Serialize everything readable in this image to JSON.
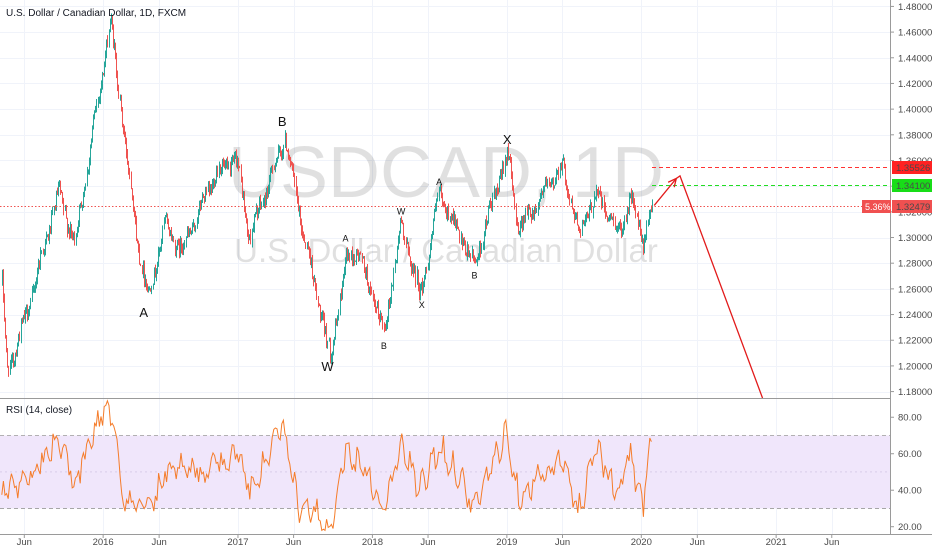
{
  "symbol_title": "U.S. Dollar / Canadian Dollar, 1D, FXCM",
  "watermark": {
    "ticker": "USDCAD, 1D",
    "name": "U.S. Dollar / Canadian Dollar"
  },
  "colors": {
    "up": "#26a69a",
    "down": "#ef5350",
    "rsi_line": "#f57c2a",
    "rsi_band": "#f0e6fb",
    "resistance": "#ff3333",
    "target": "#22dd22",
    "projection": "#e21b1b"
  },
  "chart_data": [
    {
      "type": "candlestick",
      "title": "U.S. Dollar / Canadian Dollar, 1D, FXCM",
      "ylim": [
        1.175,
        1.485
      ],
      "y_ticks": [
        "1.18000",
        "1.20000",
        "1.22000",
        "1.24000",
        "1.26000",
        "1.28000",
        "1.30000",
        "1.32000",
        "1.34000",
        "1.36000",
        "1.38000",
        "1.40000",
        "1.42000",
        "1.44000",
        "1.46000",
        "1.48000"
      ],
      "x_ticks": [
        "Jun",
        "2016",
        "Jun",
        "2017",
        "Jun",
        "2018",
        "Jun",
        "2019",
        "Jun",
        "2020",
        "Jun",
        "2021",
        "Jun"
      ],
      "grid": true,
      "key_points": [
        {
          "date": "2015-04-01",
          "price": 1.265
        },
        {
          "date": "2015-04-15",
          "price": 1.195
        },
        {
          "date": "2015-06-01",
          "price": 1.235
        },
        {
          "date": "2015-09-01",
          "price": 1.335
        },
        {
          "date": "2015-10-15",
          "price": 1.295
        },
        {
          "date": "2016-01-20",
          "price": 1.468
        },
        {
          "date": "2016-04-01",
          "price": 1.3
        },
        {
          "date": "2016-05-02",
          "price": 1.253
        },
        {
          "date": "2016-06-15",
          "price": 1.31
        },
        {
          "date": "2016-08-01",
          "price": 1.29
        },
        {
          "date": "2016-11-01",
          "price": 1.35
        },
        {
          "date": "2016-12-28",
          "price": 1.36
        },
        {
          "date": "2017-01-31",
          "price": 1.3
        },
        {
          "date": "2017-05-08",
          "price": 1.378
        },
        {
          "date": "2017-06-15",
          "price": 1.32
        },
        {
          "date": "2017-09-08",
          "price": 1.206
        },
        {
          "date": "2017-10-20",
          "price": 1.282
        },
        {
          "date": "2017-11-20",
          "price": 1.29
        },
        {
          "date": "2018-01-31",
          "price": 1.226
        },
        {
          "date": "2018-03-20",
          "price": 1.311
        },
        {
          "date": "2018-05-10",
          "price": 1.254
        },
        {
          "date": "2018-07-01",
          "price": 1.334
        },
        {
          "date": "2018-10-02",
          "price": 1.278
        },
        {
          "date": "2019-01-02",
          "price": 1.366
        },
        {
          "date": "2019-02-01",
          "price": 1.307
        },
        {
          "date": "2019-05-31",
          "price": 1.356
        },
        {
          "date": "2019-07-15",
          "price": 1.303
        },
        {
          "date": "2019-09-01",
          "price": 1.335
        },
        {
          "date": "2019-10-29",
          "price": 1.303
        },
        {
          "date": "2019-12-01",
          "price": 1.331
        },
        {
          "date": "2020-01-07",
          "price": 1.295
        },
        {
          "date": "2020-01-31",
          "price": 1.3248
        }
      ],
      "last_price": {
        "value": "1.32479",
        "change": "5.36%"
      },
      "levels": [
        {
          "label": "1.35526",
          "value": 1.35526,
          "style": "dashed",
          "color": "#ff3333"
        },
        {
          "label": "1.34100",
          "value": 1.341,
          "style": "dashed",
          "color": "#22dd22"
        },
        {
          "label": "1.32479",
          "value": 1.32479,
          "style": "dotted",
          "color": "#ef5350"
        }
      ],
      "wave_labels": [
        {
          "text": "A",
          "date": "2016-04-20",
          "price": 1.238,
          "size": "large"
        },
        {
          "text": "B",
          "date": "2017-05-01",
          "price": 1.387,
          "size": "large"
        },
        {
          "text": "W",
          "date": "2017-09-01",
          "price": 1.196,
          "size": "large"
        },
        {
          "text": "A",
          "date": "2017-10-20",
          "price": 1.297,
          "size": "small"
        },
        {
          "text": "B",
          "date": "2018-02-01",
          "price": 1.213,
          "size": "small"
        },
        {
          "text": "W",
          "date": "2018-03-20",
          "price": 1.318,
          "size": "small"
        },
        {
          "text": "X",
          "date": "2018-05-15",
          "price": 1.245,
          "size": "small"
        },
        {
          "text": "A",
          "date": "2018-07-01",
          "price": 1.341,
          "size": "small"
        },
        {
          "text": "B",
          "date": "2018-10-05",
          "price": 1.268,
          "size": "small"
        },
        {
          "text": "X",
          "date": "2019-01-02",
          "price": 1.373,
          "size": "large"
        }
      ],
      "projection": [
        {
          "date": "2020-02-05",
          "price": 1.325
        },
        {
          "date": "2020-04-05",
          "price": 1.346
        },
        {
          "date": "2020-04-15",
          "price": 1.348
        },
        {
          "date": "2020-11-25",
          "price": 1.175
        }
      ]
    },
    {
      "type": "line",
      "title": "RSI (14, close)",
      "ylim": [
        16,
        90
      ],
      "y_ticks": [
        "20.00",
        "40.00",
        "60.00",
        "80.00"
      ],
      "band": [
        30,
        70
      ],
      "series": [
        {
          "values_at_dates": [
            {
              "date": "2015-04-01",
              "value": 38
            },
            {
              "date": "2015-07-01",
              "value": 52
            },
            {
              "date": "2015-09-01",
              "value": 68
            },
            {
              "date": "2015-10-15",
              "value": 45
            },
            {
              "date": "2016-01-10",
              "value": 88
            },
            {
              "date": "2016-01-25",
              "value": 78
            },
            {
              "date": "2016-03-01",
              "value": 35
            },
            {
              "date": "2016-05-02",
              "value": 30
            },
            {
              "date": "2016-07-01",
              "value": 55
            },
            {
              "date": "2016-10-01",
              "value": 50
            },
            {
              "date": "2017-01-01",
              "value": 60
            },
            {
              "date": "2017-02-01",
              "value": 40
            },
            {
              "date": "2017-05-01",
              "value": 75
            },
            {
              "date": "2017-06-15",
              "value": 30
            },
            {
              "date": "2017-08-01",
              "value": 26
            },
            {
              "date": "2017-09-08",
              "value": 20
            },
            {
              "date": "2017-10-20",
              "value": 62
            },
            {
              "date": "2017-12-15",
              "value": 52
            },
            {
              "date": "2018-01-31",
              "value": 28
            },
            {
              "date": "2018-03-20",
              "value": 65
            },
            {
              "date": "2018-05-10",
              "value": 40
            },
            {
              "date": "2018-07-01",
              "value": 64
            },
            {
              "date": "2018-09-01",
              "value": 46
            },
            {
              "date": "2018-10-02",
              "value": 30
            },
            {
              "date": "2018-12-30",
              "value": 72
            },
            {
              "date": "2019-02-01",
              "value": 38
            },
            {
              "date": "2019-06-01",
              "value": 56
            },
            {
              "date": "2019-07-15",
              "value": 28
            },
            {
              "date": "2019-09-01",
              "value": 66
            },
            {
              "date": "2019-10-29",
              "value": 35
            },
            {
              "date": "2019-12-01",
              "value": 62
            },
            {
              "date": "2020-01-07",
              "value": 28
            },
            {
              "date": "2020-01-25",
              "value": 72
            },
            {
              "date": "2020-01-31",
              "value": 60
            }
          ]
        }
      ]
    }
  ]
}
